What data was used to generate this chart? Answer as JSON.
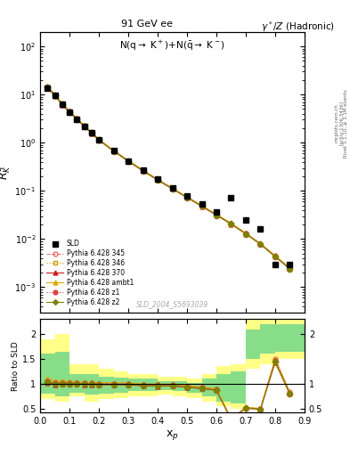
{
  "title_center": "91 GeV ee",
  "title_right": "γ*/Z (Hadronic)",
  "plot_subtitle": "N(q→ K+)+N(̅q→ K⁻)",
  "ylabel_main": "$R^q_K$",
  "ylabel_ratio": "Ratio to SLD",
  "xlabel": "x$_p$",
  "watermark": "SLD_2004_S5693039",
  "background_color": "#ffffff",
  "sld_x": [
    0.025,
    0.05,
    0.075,
    0.1,
    0.125,
    0.15,
    0.175,
    0.2,
    0.25,
    0.3,
    0.35,
    0.4,
    0.45,
    0.5,
    0.55,
    0.6,
    0.65,
    0.7,
    0.75,
    0.8,
    0.85
  ],
  "sld_y": [
    13.5,
    9.5,
    6.2,
    4.3,
    3.1,
    2.2,
    1.6,
    1.15,
    0.68,
    0.42,
    0.27,
    0.175,
    0.115,
    0.078,
    0.053,
    0.036,
    0.072,
    0.025,
    0.016,
    0.003,
    0.003
  ],
  "p345_x": [
    0.025,
    0.05,
    0.075,
    0.1,
    0.125,
    0.15,
    0.175,
    0.2,
    0.25,
    0.3,
    0.35,
    0.4,
    0.45,
    0.5,
    0.55,
    0.6,
    0.65,
    0.7,
    0.75,
    0.8,
    0.85
  ],
  "p345_y": [
    14.5,
    9.8,
    6.4,
    4.4,
    3.15,
    2.22,
    1.61,
    1.15,
    0.68,
    0.42,
    0.265,
    0.171,
    0.112,
    0.074,
    0.049,
    0.032,
    0.021,
    0.013,
    0.008,
    0.0045,
    0.0025
  ],
  "p346_x": [
    0.025,
    0.05,
    0.075,
    0.1,
    0.125,
    0.15,
    0.175,
    0.2,
    0.25,
    0.3,
    0.35,
    0.4,
    0.45,
    0.5,
    0.55,
    0.6,
    0.65,
    0.7,
    0.75,
    0.8,
    0.85
  ],
  "p346_y": [
    14.2,
    9.6,
    6.3,
    4.35,
    3.12,
    2.2,
    1.6,
    1.14,
    0.675,
    0.416,
    0.262,
    0.169,
    0.111,
    0.0733,
    0.0485,
    0.0317,
    0.0208,
    0.0129,
    0.0079,
    0.0044,
    0.0024
  ],
  "p370_x": [
    0.025,
    0.05,
    0.075,
    0.1,
    0.125,
    0.15,
    0.175,
    0.2,
    0.25,
    0.3,
    0.35,
    0.4,
    0.45,
    0.5,
    0.55,
    0.6,
    0.65,
    0.7,
    0.75,
    0.8,
    0.85
  ],
  "p370_y": [
    13.8,
    9.4,
    6.15,
    4.28,
    3.08,
    2.17,
    1.58,
    1.13,
    0.668,
    0.412,
    0.259,
    0.167,
    0.11,
    0.0725,
    0.048,
    0.0313,
    0.0205,
    0.0128,
    0.0078,
    0.0043,
    0.0024
  ],
  "pambt1_x": [
    0.025,
    0.05,
    0.075,
    0.1,
    0.125,
    0.15,
    0.175,
    0.2,
    0.25,
    0.3,
    0.35,
    0.4,
    0.45,
    0.5,
    0.55,
    0.6,
    0.65,
    0.7,
    0.75,
    0.8,
    0.85
  ],
  "pambt1_y": [
    15.0,
    10.0,
    6.55,
    4.52,
    3.22,
    2.27,
    1.65,
    1.18,
    0.695,
    0.429,
    0.269,
    0.174,
    0.114,
    0.075,
    0.0497,
    0.0324,
    0.0213,
    0.0132,
    0.0081,
    0.0045,
    0.0025
  ],
  "pz1_x": [
    0.025,
    0.05,
    0.075,
    0.1,
    0.125,
    0.15,
    0.175,
    0.2,
    0.25,
    0.3,
    0.35,
    0.4,
    0.45,
    0.5,
    0.55,
    0.6,
    0.65,
    0.7,
    0.75,
    0.8,
    0.85
  ],
  "pz1_y": [
    14.3,
    9.7,
    6.35,
    4.41,
    3.16,
    2.23,
    1.62,
    1.155,
    0.682,
    0.421,
    0.264,
    0.171,
    0.112,
    0.0738,
    0.0488,
    0.0318,
    0.0209,
    0.013,
    0.0079,
    0.0044,
    0.0024
  ],
  "pz2_x": [
    0.025,
    0.05,
    0.075,
    0.1,
    0.125,
    0.15,
    0.175,
    0.2,
    0.25,
    0.3,
    0.35,
    0.4,
    0.45,
    0.5,
    0.55,
    0.6,
    0.65,
    0.7,
    0.75,
    0.8,
    0.85
  ],
  "pz2_y": [
    14.0,
    9.55,
    6.25,
    4.33,
    3.11,
    2.19,
    1.595,
    1.138,
    0.672,
    0.414,
    0.261,
    0.168,
    0.1105,
    0.0728,
    0.0482,
    0.0314,
    0.0206,
    0.0128,
    0.00782,
    0.00434,
    0.0024
  ],
  "col_345": "#e87070",
  "col_346": "#c8a000",
  "col_370": "#cc2020",
  "col_ambt1": "#ddaa00",
  "col_z1": "#dd4444",
  "col_z2": "#808000",
  "ylim_main": [
    0.0003,
    200
  ],
  "ylim_ratio": [
    0.42,
    2.3
  ],
  "xlim": [
    0.0,
    0.9
  ],
  "ratio_yticks": [
    0.5,
    1.0,
    1.5,
    2.0
  ],
  "ratio_yticklabels": [
    "0.5",
    "1",
    "1.5",
    "2"
  ]
}
